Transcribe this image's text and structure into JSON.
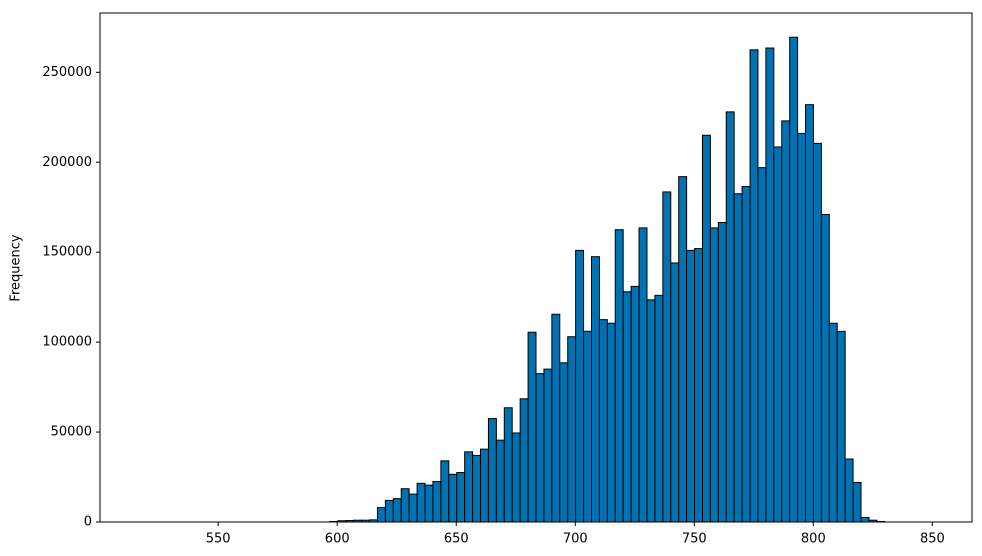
{
  "chart_data": {
    "type": "histogram",
    "ylabel": "Frequency",
    "bins": [
      517,
      520.33,
      523.66,
      526.99,
      530.32,
      533.65,
      536.98,
      540.31,
      543.64,
      546.97,
      550.3,
      553.63,
      556.96,
      560.29,
      563.62,
      566.95,
      570.28,
      573.61,
      576.94,
      580.27,
      583.6,
      586.93,
      590.26,
      593.59,
      596.92,
      600.25,
      603.58,
      606.91,
      610.24,
      613.57,
      616.9,
      620.23,
      623.56,
      626.89,
      630.22,
      633.55,
      636.88,
      640.21,
      643.54,
      646.87,
      650.2,
      653.53,
      656.86,
      660.19,
      663.52,
      666.85,
      670.18,
      673.51,
      676.84,
      680.17,
      683.5,
      686.83,
      690.16,
      693.49,
      696.82,
      700.15,
      703.48,
      706.81,
      710.14,
      713.47,
      716.8,
      720.13,
      723.46,
      726.79,
      730.12,
      733.45,
      736.78,
      740.11,
      743.44,
      746.77,
      750.1,
      753.43,
      756.76,
      760.09,
      763.42,
      766.75,
      770.08,
      773.41,
      776.74,
      780.07,
      783.4,
      786.73,
      790.06,
      793.39,
      796.72,
      800.05,
      803.38,
      806.71,
      810.04,
      813.37,
      816.7,
      820.03,
      823.36,
      826.69,
      830.02,
      833.35,
      836.68,
      840.01,
      843.34,
      846.67,
      850
    ],
    "values": [
      0,
      0,
      0,
      0,
      0,
      0,
      0,
      0,
      0,
      0,
      0,
      0,
      0,
      0,
      0,
      0,
      0,
      0,
      0,
      0,
      0,
      0,
      0,
      0,
      300,
      700,
      800,
      1000,
      1000,
      1200,
      8000,
      12000,
      13000,
      18500,
      15500,
      21500,
      20500,
      22500,
      34000,
      26500,
      27500,
      39000,
      37000,
      40500,
      57500,
      45500,
      63500,
      49500,
      68500,
      105500,
      82500,
      85000,
      115500,
      88500,
      103000,
      151000,
      106000,
      147500,
      112500,
      110500,
      162500,
      128000,
      131000,
      163500,
      123500,
      126000,
      183500,
      144000,
      192000,
      151000,
      152000,
      215000,
      163500,
      166500,
      228000,
      182500,
      186500,
      262500,
      197000,
      263500,
      208500,
      223000,
      269500,
      216000,
      232000,
      210500,
      171000,
      110500,
      106000,
      35000,
      22000,
      2500,
      1000,
      300,
      0,
      0,
      0,
      0,
      0,
      0
    ],
    "color": "#0072b2",
    "edgecolor": "#000000",
    "xlim": [
      500.35,
      866.65
    ],
    "ylim": [
      0,
      282975
    ],
    "xticks": [
      550,
      600,
      650,
      700,
      750,
      800,
      850
    ],
    "yticks": [
      0,
      50000,
      100000,
      150000,
      200000,
      250000
    ]
  }
}
